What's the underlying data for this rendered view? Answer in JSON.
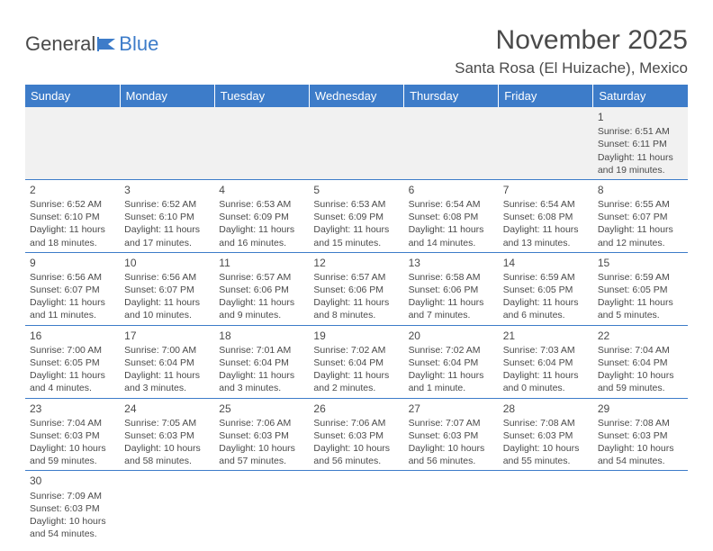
{
  "brand": {
    "part1": "General",
    "part2": "Blue"
  },
  "title": "November 2025",
  "location": "Santa Rosa (El Huizache), Mexico",
  "colors": {
    "header_bg": "#3d7cc9",
    "header_text": "#ffffff",
    "border": "#3d7cc9",
    "text": "#4a4a4a",
    "first_row_bg": "#f1f1f1",
    "page_bg": "#ffffff"
  },
  "columns": [
    "Sunday",
    "Monday",
    "Tuesday",
    "Wednesday",
    "Thursday",
    "Friday",
    "Saturday"
  ],
  "weeks": [
    [
      null,
      null,
      null,
      null,
      null,
      null,
      {
        "n": "1",
        "sr": "Sunrise: 6:51 AM",
        "ss": "Sunset: 6:11 PM",
        "dl": "Daylight: 11 hours and 19 minutes."
      }
    ],
    [
      {
        "n": "2",
        "sr": "Sunrise: 6:52 AM",
        "ss": "Sunset: 6:10 PM",
        "dl": "Daylight: 11 hours and 18 minutes."
      },
      {
        "n": "3",
        "sr": "Sunrise: 6:52 AM",
        "ss": "Sunset: 6:10 PM",
        "dl": "Daylight: 11 hours and 17 minutes."
      },
      {
        "n": "4",
        "sr": "Sunrise: 6:53 AM",
        "ss": "Sunset: 6:09 PM",
        "dl": "Daylight: 11 hours and 16 minutes."
      },
      {
        "n": "5",
        "sr": "Sunrise: 6:53 AM",
        "ss": "Sunset: 6:09 PM",
        "dl": "Daylight: 11 hours and 15 minutes."
      },
      {
        "n": "6",
        "sr": "Sunrise: 6:54 AM",
        "ss": "Sunset: 6:08 PM",
        "dl": "Daylight: 11 hours and 14 minutes."
      },
      {
        "n": "7",
        "sr": "Sunrise: 6:54 AM",
        "ss": "Sunset: 6:08 PM",
        "dl": "Daylight: 11 hours and 13 minutes."
      },
      {
        "n": "8",
        "sr": "Sunrise: 6:55 AM",
        "ss": "Sunset: 6:07 PM",
        "dl": "Daylight: 11 hours and 12 minutes."
      }
    ],
    [
      {
        "n": "9",
        "sr": "Sunrise: 6:56 AM",
        "ss": "Sunset: 6:07 PM",
        "dl": "Daylight: 11 hours and 11 minutes."
      },
      {
        "n": "10",
        "sr": "Sunrise: 6:56 AM",
        "ss": "Sunset: 6:07 PM",
        "dl": "Daylight: 11 hours and 10 minutes."
      },
      {
        "n": "11",
        "sr": "Sunrise: 6:57 AM",
        "ss": "Sunset: 6:06 PM",
        "dl": "Daylight: 11 hours and 9 minutes."
      },
      {
        "n": "12",
        "sr": "Sunrise: 6:57 AM",
        "ss": "Sunset: 6:06 PM",
        "dl": "Daylight: 11 hours and 8 minutes."
      },
      {
        "n": "13",
        "sr": "Sunrise: 6:58 AM",
        "ss": "Sunset: 6:06 PM",
        "dl": "Daylight: 11 hours and 7 minutes."
      },
      {
        "n": "14",
        "sr": "Sunrise: 6:59 AM",
        "ss": "Sunset: 6:05 PM",
        "dl": "Daylight: 11 hours and 6 minutes."
      },
      {
        "n": "15",
        "sr": "Sunrise: 6:59 AM",
        "ss": "Sunset: 6:05 PM",
        "dl": "Daylight: 11 hours and 5 minutes."
      }
    ],
    [
      {
        "n": "16",
        "sr": "Sunrise: 7:00 AM",
        "ss": "Sunset: 6:05 PM",
        "dl": "Daylight: 11 hours and 4 minutes."
      },
      {
        "n": "17",
        "sr": "Sunrise: 7:00 AM",
        "ss": "Sunset: 6:04 PM",
        "dl": "Daylight: 11 hours and 3 minutes."
      },
      {
        "n": "18",
        "sr": "Sunrise: 7:01 AM",
        "ss": "Sunset: 6:04 PM",
        "dl": "Daylight: 11 hours and 3 minutes."
      },
      {
        "n": "19",
        "sr": "Sunrise: 7:02 AM",
        "ss": "Sunset: 6:04 PM",
        "dl": "Daylight: 11 hours and 2 minutes."
      },
      {
        "n": "20",
        "sr": "Sunrise: 7:02 AM",
        "ss": "Sunset: 6:04 PM",
        "dl": "Daylight: 11 hours and 1 minute."
      },
      {
        "n": "21",
        "sr": "Sunrise: 7:03 AM",
        "ss": "Sunset: 6:04 PM",
        "dl": "Daylight: 11 hours and 0 minutes."
      },
      {
        "n": "22",
        "sr": "Sunrise: 7:04 AM",
        "ss": "Sunset: 6:04 PM",
        "dl": "Daylight: 10 hours and 59 minutes."
      }
    ],
    [
      {
        "n": "23",
        "sr": "Sunrise: 7:04 AM",
        "ss": "Sunset: 6:03 PM",
        "dl": "Daylight: 10 hours and 59 minutes."
      },
      {
        "n": "24",
        "sr": "Sunrise: 7:05 AM",
        "ss": "Sunset: 6:03 PM",
        "dl": "Daylight: 10 hours and 58 minutes."
      },
      {
        "n": "25",
        "sr": "Sunrise: 7:06 AM",
        "ss": "Sunset: 6:03 PM",
        "dl": "Daylight: 10 hours and 57 minutes."
      },
      {
        "n": "26",
        "sr": "Sunrise: 7:06 AM",
        "ss": "Sunset: 6:03 PM",
        "dl": "Daylight: 10 hours and 56 minutes."
      },
      {
        "n": "27",
        "sr": "Sunrise: 7:07 AM",
        "ss": "Sunset: 6:03 PM",
        "dl": "Daylight: 10 hours and 56 minutes."
      },
      {
        "n": "28",
        "sr": "Sunrise: 7:08 AM",
        "ss": "Sunset: 6:03 PM",
        "dl": "Daylight: 10 hours and 55 minutes."
      },
      {
        "n": "29",
        "sr": "Sunrise: 7:08 AM",
        "ss": "Sunset: 6:03 PM",
        "dl": "Daylight: 10 hours and 54 minutes."
      }
    ],
    [
      {
        "n": "30",
        "sr": "Sunrise: 7:09 AM",
        "ss": "Sunset: 6:03 PM",
        "dl": "Daylight: 10 hours and 54 minutes."
      },
      null,
      null,
      null,
      null,
      null,
      null
    ]
  ]
}
